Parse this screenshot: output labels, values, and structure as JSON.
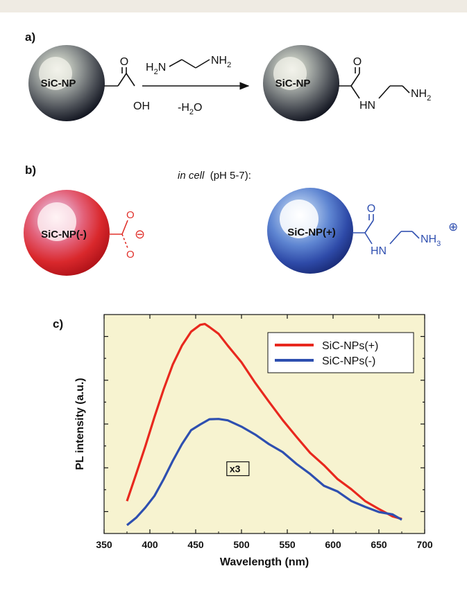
{
  "panels": {
    "a": {
      "letter": "a)",
      "np_left_label": "SiC-NP",
      "np_right_label": "SiC-NP",
      "left_acid": {
        "carbonyl_o": "O",
        "oh": "OH"
      },
      "reagent_left": "H",
      "reagent_left_sub": "2",
      "reagent_left_n": "N",
      "reagent_right": "NH",
      "reagent_right_sub": "2",
      "byproduct": "-H",
      "byproduct_sub": "2",
      "byproduct_o": "O",
      "right_amide": {
        "carbonyl_o": "O",
        "hn": "HN",
        "nh2": "NH",
        "nh2_sub": "2"
      }
    },
    "b": {
      "letter": "b)",
      "condition_italic": "in cell",
      "condition_rest": "(pH 5-7):",
      "np_neg_label": "SiC-NP(-)",
      "np_pos_label": "SiC-NP(+)",
      "carboxylate": {
        "o_top": "O",
        "o_bottom": "O",
        "charge": "⊖"
      },
      "ammonium": {
        "carbonyl_o": "O",
        "hn": "HN",
        "nh3": "NH",
        "nh3_sub": "3",
        "charge": "⊕"
      }
    },
    "c": {
      "letter": "c)"
    }
  },
  "colors": {
    "red": "#e8281e",
    "blue": "#2e4fb0",
    "plot_bg": "#f7f3d0",
    "neg_chem": "#e0302a",
    "pos_chem": "#3050b0"
  },
  "chart_data": {
    "type": "line",
    "xlabel": "Wavelength (nm)",
    "ylabel": "PL intensity (a.u.)",
    "xlim": [
      350,
      700
    ],
    "ylim": [
      0,
      1
    ],
    "x_ticks": [
      350,
      400,
      450,
      500,
      550,
      600,
      650,
      700
    ],
    "y_tick_count": 5,
    "y_tick_labels_shown": false,
    "annotation": "x3",
    "legend_position": "top-right",
    "series": [
      {
        "name": "SiC-NPs(+)",
        "color": "#e8281e",
        "x": [
          375,
          385,
          395,
          405,
          415,
          425,
          435,
          445,
          455,
          460,
          465,
          475,
          485,
          500,
          515,
          530,
          545,
          560,
          575,
          590,
          605,
          620,
          635,
          650,
          665,
          675
        ],
        "y": [
          0.15,
          0.27,
          0.4,
          0.53,
          0.66,
          0.77,
          0.86,
          0.92,
          0.955,
          0.955,
          0.945,
          0.91,
          0.86,
          0.78,
          0.69,
          0.6,
          0.52,
          0.44,
          0.37,
          0.31,
          0.25,
          0.2,
          0.15,
          0.11,
          0.08,
          0.065
        ]
      },
      {
        "name": "SiC-NPs(-)",
        "color": "#2e4fb0",
        "x": [
          375,
          385,
          395,
          405,
          415,
          425,
          435,
          445,
          455,
          465,
          475,
          485,
          500,
          515,
          530,
          545,
          560,
          575,
          590,
          605,
          620,
          635,
          650,
          665,
          675
        ],
        "y": [
          0.04,
          0.07,
          0.12,
          0.17,
          0.25,
          0.33,
          0.41,
          0.47,
          0.5,
          0.52,
          0.525,
          0.515,
          0.49,
          0.45,
          0.41,
          0.37,
          0.32,
          0.27,
          0.22,
          0.19,
          0.15,
          0.12,
          0.1,
          0.085,
          0.065
        ]
      }
    ]
  }
}
